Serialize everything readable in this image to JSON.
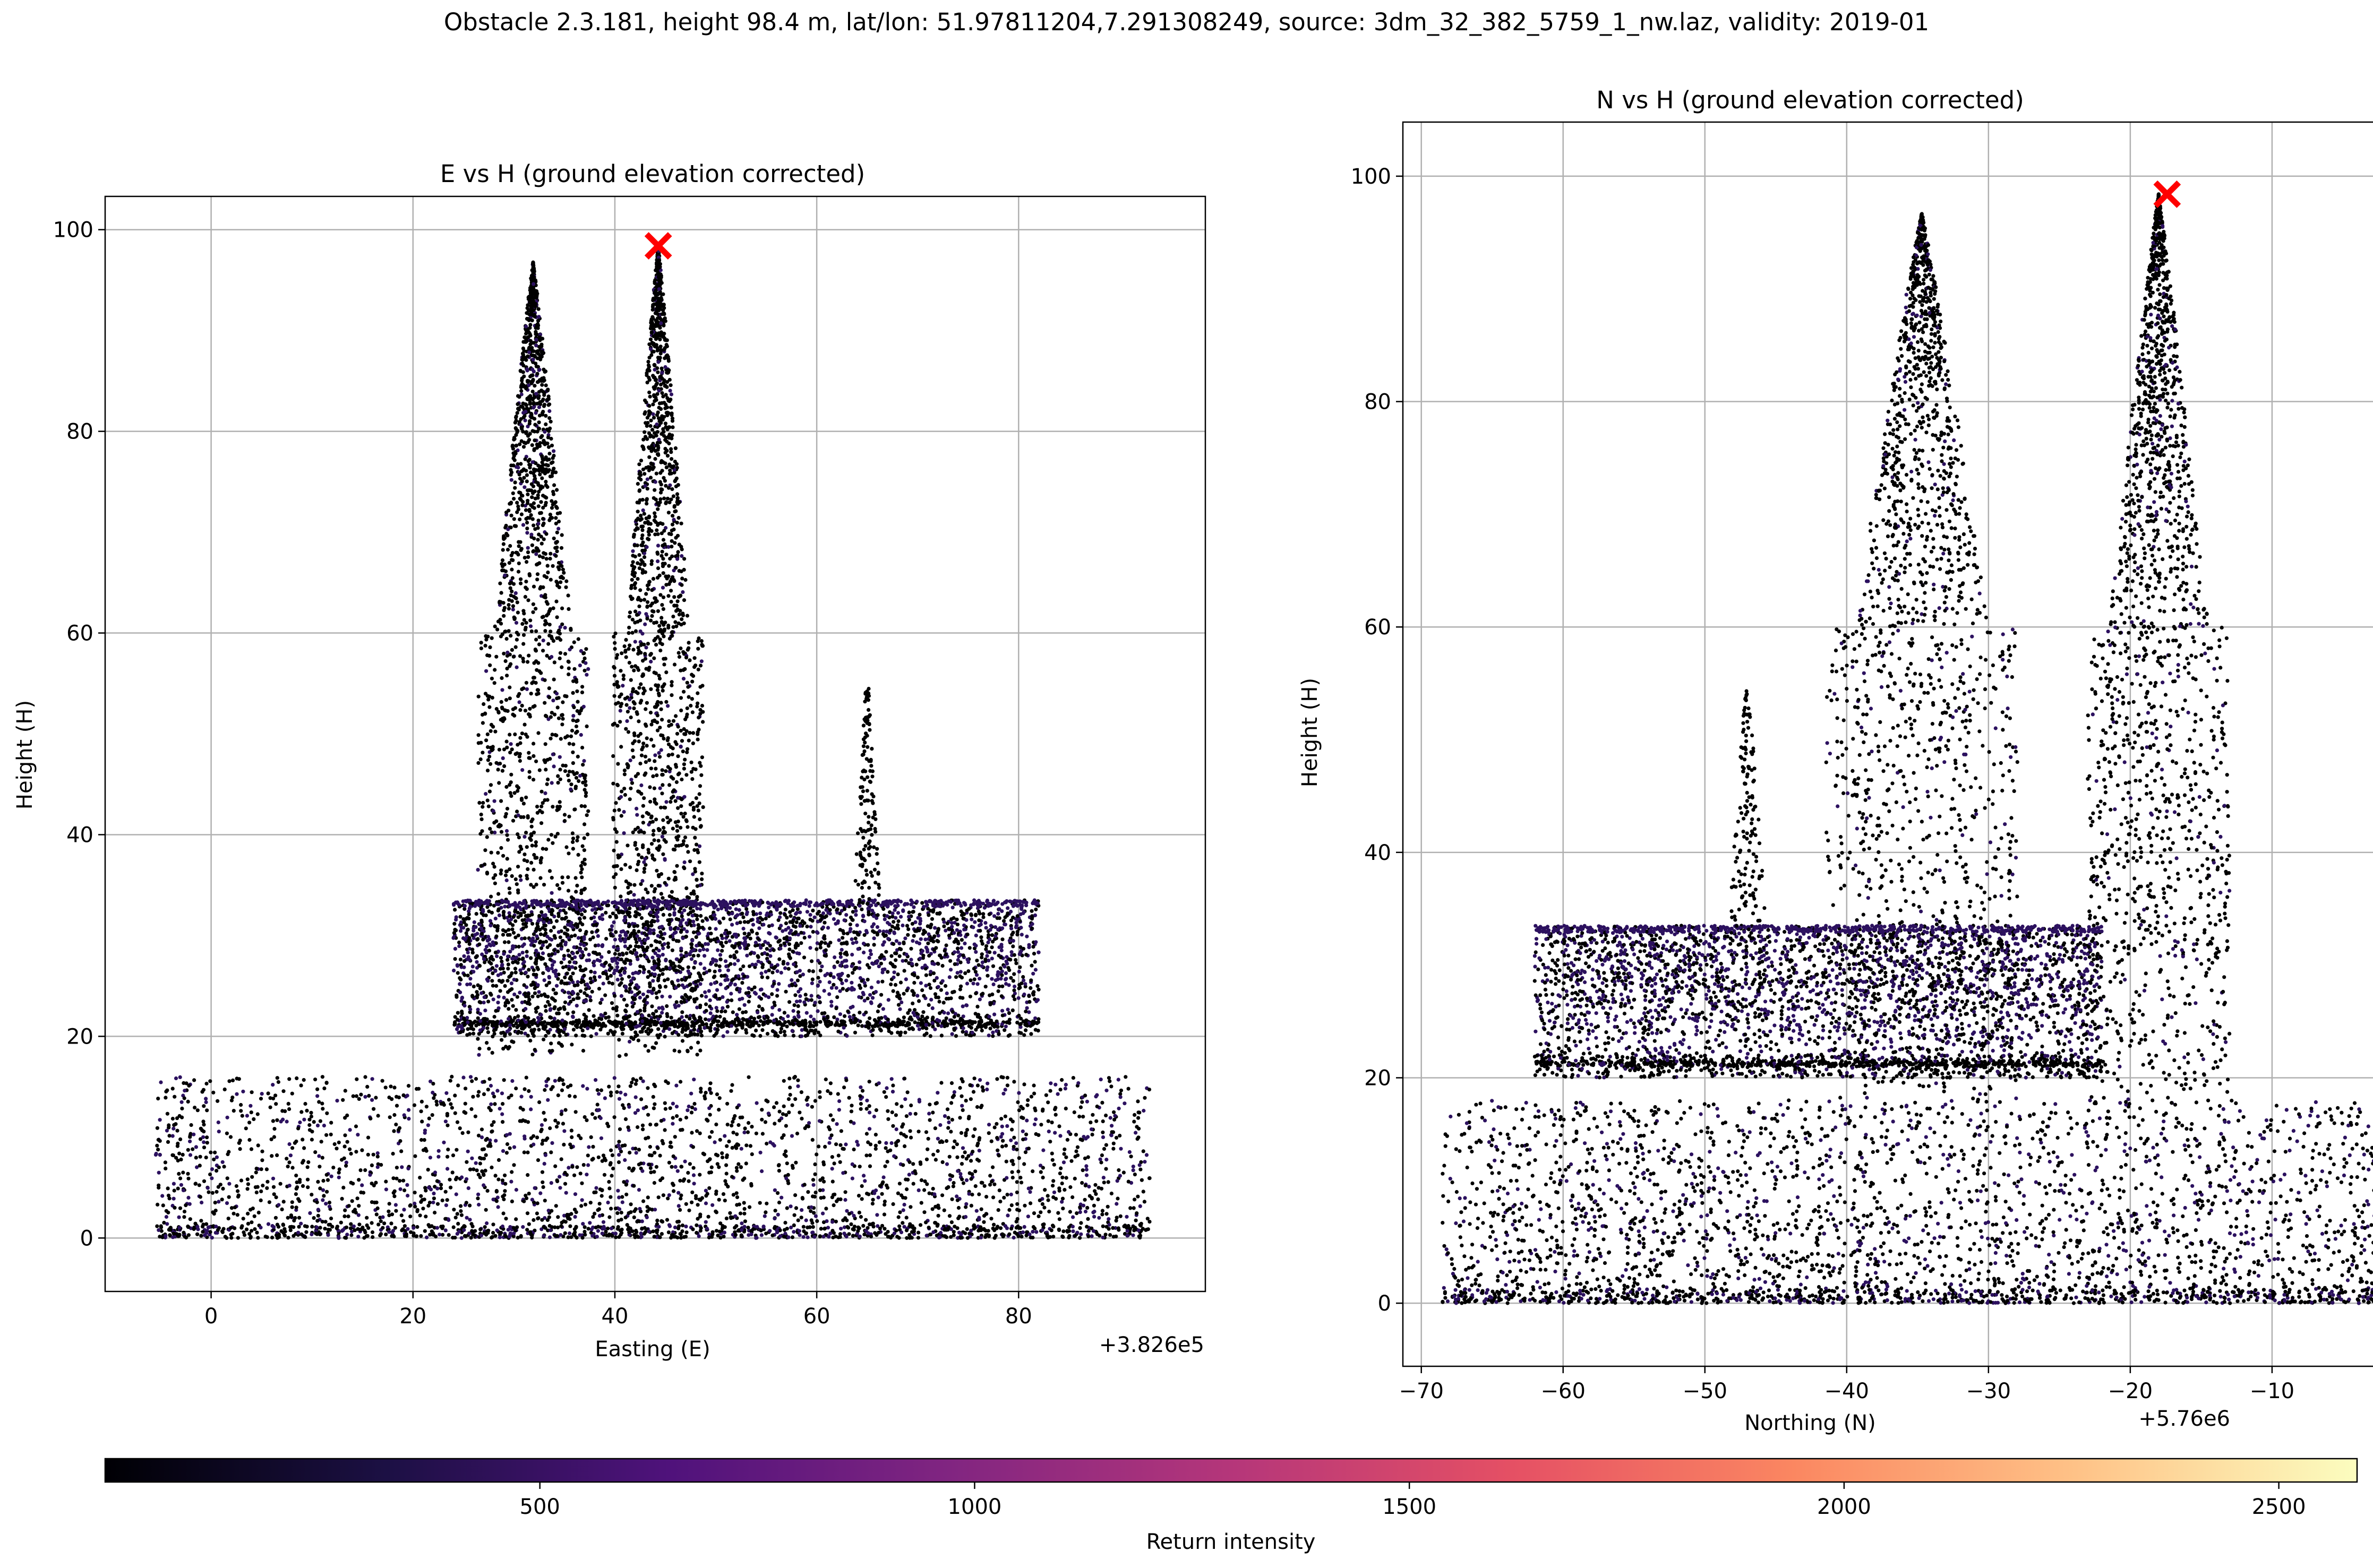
{
  "figure": {
    "suptitle": "Obstacle 2.3.181, height 98.4 m, lat/lon: 51.97811204,7.291308249, source: 3dm_32_382_5759_1_nw.laz, validity: 2019-01"
  },
  "chart_data": [
    {
      "type": "scatter",
      "title": "E vs H (ground elevation corrected)",
      "xlabel": "Easting (E)",
      "ylabel": "Height (H)",
      "x_offset_label": "+3.826e5",
      "xlim": [
        -10.5,
        98.5
      ],
      "ylim": [
        -5.3,
        103.3
      ],
      "xticks": [
        0,
        20,
        40,
        60,
        80
      ],
      "yticks": [
        0,
        20,
        40,
        60,
        80,
        100
      ],
      "grid": true,
      "obstacle_marker": {
        "x": 44.3,
        "y": 98.4,
        "color": "#ff0000",
        "symbol": "x"
      },
      "features": [
        {
          "name": "spire",
          "x_min": 25.5,
          "x_max": 36.5,
          "peak_x": 31.9,
          "peak_y": 96.8
        },
        {
          "name": "spire",
          "x_min": 40.5,
          "x_max": 49.5,
          "peak_x": 44.3,
          "peak_y": 98.4
        },
        {
          "name": "nave_roof",
          "x_min": 24.0,
          "x_max": 82.0,
          "top_y": 33.5
        },
        {
          "name": "turret",
          "x": 65.0,
          "peak_y": 54.5
        },
        {
          "name": "trees_low",
          "x_min": -5.5,
          "x_max": 93.0,
          "y_max": 16.0
        }
      ]
    },
    {
      "type": "scatter",
      "title": "N vs H (ground elevation corrected)",
      "xlabel": "Northing (N)",
      "ylabel": "Height (H)",
      "x_offset_label": "+5.76e6",
      "xlim": [
        -71.3,
        1.8
      ],
      "ylim": [
        -5.6,
        104.8
      ],
      "xticks": [
        -70,
        -60,
        -50,
        -40,
        -30,
        -20,
        -10,
        0
      ],
      "yticks": [
        0,
        20,
        40,
        60,
        80,
        100
      ],
      "grid": true,
      "obstacle_marker": {
        "x": -17.4,
        "y": 98.4,
        "color": "#ff0000",
        "symbol": "x"
      },
      "features": [
        {
          "name": "spire",
          "x_min": -40.0,
          "x_max": -26.5,
          "peak_x": -34.7,
          "peak_y": 96.7
        },
        {
          "name": "spire",
          "x_min": -21.5,
          "x_max": -11.5,
          "peak_x": -18.0,
          "peak_y": 98.4
        },
        {
          "name": "nave_roof",
          "x_min": -62.0,
          "x_max": -22.0,
          "top_y": 33.5
        },
        {
          "name": "turret",
          "x": -47.0,
          "peak_y": 54.5
        },
        {
          "name": "trees_low",
          "x_min": -68.5,
          "x_max": -1.5,
          "y_max": 18.0
        }
      ]
    }
  ],
  "colorbar": {
    "label": "Return intensity",
    "cmap": "magma",
    "vmin": 0,
    "vmax": 2590,
    "ticks": [
      500,
      1000,
      1500,
      2000,
      2500
    ],
    "stops": [
      "#000004",
      "#1c1044",
      "#4f127b",
      "#812581",
      "#b5367a",
      "#e55064",
      "#fb8761",
      "#fec287",
      "#fcfdbf"
    ]
  },
  "colors": {
    "point_dark": "#000000",
    "point_purple": "#2c115f",
    "grid": "#b0b0b0",
    "marker": "#ff0000"
  }
}
